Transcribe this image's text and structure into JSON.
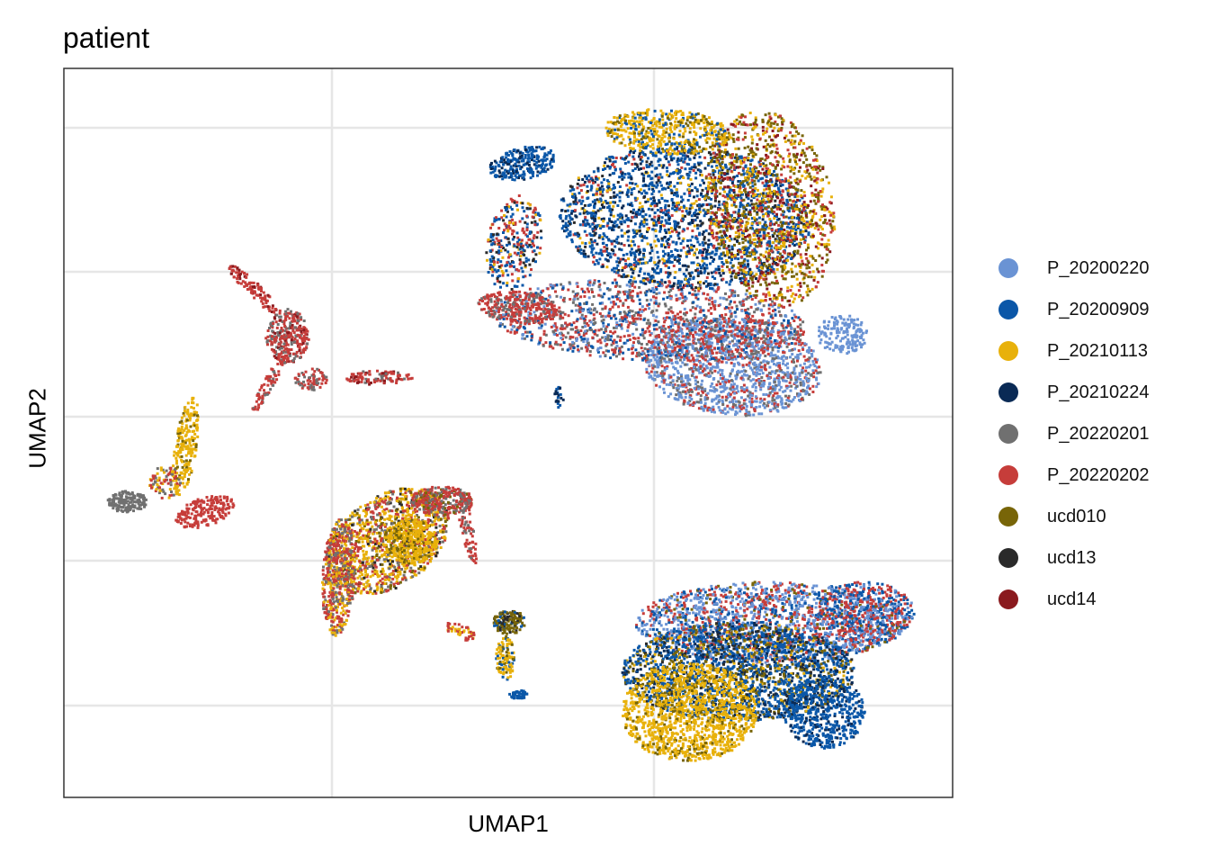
{
  "chart_data": {
    "type": "scatter",
    "title": "patient",
    "xlabel": "UMAP1",
    "ylabel": "UMAP2",
    "grid": true,
    "x_ticks_labeled": false,
    "y_ticks_labeled": false,
    "legend_position": "right",
    "series": [
      {
        "name": "P_20200220",
        "color": "#6A93D4"
      },
      {
        "name": "P_20200909",
        "color": "#0B57A8"
      },
      {
        "name": "P_20210113",
        "color": "#E8B10B"
      },
      {
        "name": "P_20210224",
        "color": "#0A2A55"
      },
      {
        "name": "P_20220201",
        "color": "#707070"
      },
      {
        "name": "P_20220202",
        "color": "#C63D3A"
      },
      {
        "name": "ucd010",
        "color": "#786508"
      },
      {
        "name": "ucd13",
        "color": "#2A2A2A"
      },
      {
        "name": "ucd14",
        "color": "#8A1A1E"
      }
    ]
  }
}
